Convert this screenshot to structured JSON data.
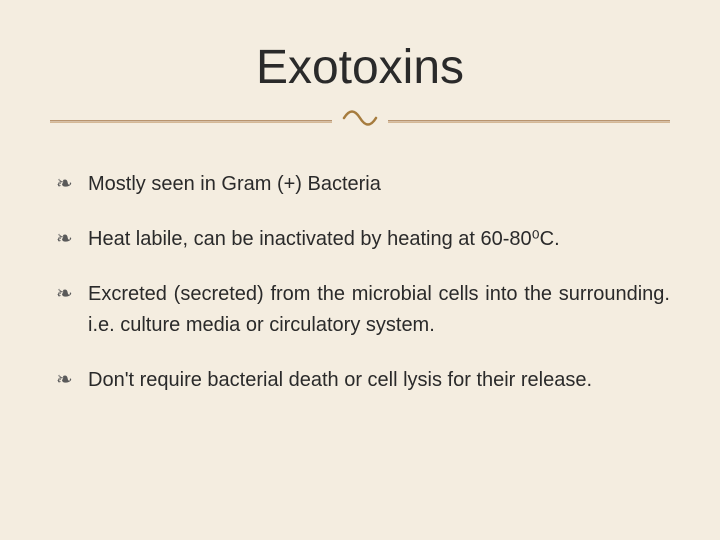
{
  "slide": {
    "title": "Exotoxins",
    "background_color": "#f4ede0",
    "title_fontsize": 48,
    "title_color": "#2a2a2a",
    "divider_color": "#a67c3e",
    "bullet_glyph": "❧",
    "bullet_color": "#5a5a5a",
    "body_fontsize": 20,
    "body_color": "#2a2a2a",
    "bullets": [
      {
        "text": "Mostly seen in Gram (+) Bacteria",
        "justified": false
      },
      {
        "text": "Heat labile, can be inactivated by heating at 60-80⁰C.",
        "justified": false
      },
      {
        "text": "Excreted (secreted) from the microbial cells into the surrounding. i.e. culture media or circulatory system.",
        "justified": true
      },
      {
        "text": "Don't require bacterial death or cell lysis for their release.",
        "justified": false
      }
    ]
  }
}
